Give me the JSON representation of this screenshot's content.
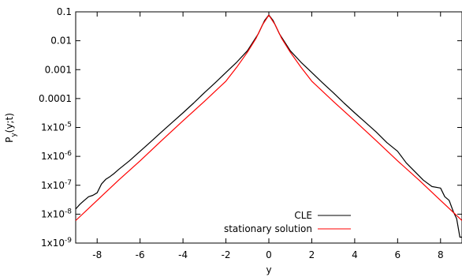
{
  "chart_data": {
    "type": "line",
    "title": "",
    "xlabel": "y",
    "ylabel": "P_y(y;t)",
    "ylabel_parts": {
      "base": "P",
      "sub": "y",
      "rest": "(y;t)"
    },
    "xlim": [
      -9,
      9
    ],
    "ylim": [
      1e-09,
      0.1
    ],
    "yscale": "log",
    "grid": false,
    "legend_position": "bottom-right",
    "x_ticks": [
      {
        "value": -8,
        "label": "-8"
      },
      {
        "value": -6,
        "label": "-6"
      },
      {
        "value": -4,
        "label": "-4"
      },
      {
        "value": -2,
        "label": "-2"
      },
      {
        "value": 0,
        "label": "0"
      },
      {
        "value": 2,
        "label": "2"
      },
      {
        "value": 4,
        "label": "4"
      },
      {
        "value": 6,
        "label": "6"
      },
      {
        "value": 8,
        "label": "8"
      }
    ],
    "y_ticks": [
      {
        "value": 0.1,
        "label": "0.1"
      },
      {
        "value": 0.01,
        "label": "0.01"
      },
      {
        "value": 0.001,
        "label": "0.001"
      },
      {
        "value": 0.0001,
        "label": "0.0001"
      },
      {
        "value": 1e-05,
        "base": "1x10",
        "exp": "-5"
      },
      {
        "value": 1e-06,
        "base": "1x10",
        "exp": "-6"
      },
      {
        "value": 1e-07,
        "base": "1x10",
        "exp": "-7"
      },
      {
        "value": 1e-08,
        "base": "1x10",
        "exp": "-8"
      },
      {
        "value": 1e-09,
        "base": "1x10",
        "exp": "-9"
      }
    ],
    "series": [
      {
        "name": "CLE",
        "color": "#000000",
        "x": [
          -9.0,
          -8.8,
          -8.6,
          -8.4,
          -8.2,
          -8.0,
          -7.8,
          -7.6,
          -7.4,
          -7.2,
          -7.0,
          -6.5,
          -6.0,
          -5.5,
          -5.0,
          -4.5,
          -4.0,
          -3.5,
          -3.0,
          -2.5,
          -2.0,
          -1.5,
          -1.0,
          -0.5,
          -0.2,
          0.0,
          0.2,
          0.5,
          1.0,
          1.5,
          2.0,
          2.5,
          3.0,
          3.5,
          4.0,
          4.5,
          5.0,
          5.5,
          6.0,
          6.4,
          6.8,
          7.2,
          7.6,
          8.0,
          8.2,
          8.4,
          8.6,
          8.75,
          8.9,
          9.0
        ],
        "y": [
          1.5e-08,
          2.2e-08,
          3e-08,
          4e-08,
          4.5e-08,
          5.5e-08,
          1.1e-07,
          1.6e-07,
          2e-07,
          2.6e-07,
          3.5e-07,
          7e-07,
          1.5e-06,
          3.2e-06,
          7e-06,
          1.5e-05,
          3.2e-05,
          7e-05,
          0.00016,
          0.00035,
          0.0008,
          0.0018,
          0.0045,
          0.017,
          0.05,
          0.078,
          0.05,
          0.017,
          0.0045,
          0.0018,
          0.0008,
          0.00035,
          0.00016,
          7e-05,
          3.2e-05,
          1.5e-05,
          7e-06,
          3e-06,
          1.5e-06,
          6e-07,
          3e-07,
          1.5e-07,
          9e-08,
          8e-08,
          4e-08,
          3e-08,
          1.2e-08,
          7e-09,
          1.6e-09,
          1.6e-09
        ]
      },
      {
        "name": "stationary solution",
        "color": "#ff0000",
        "x": [
          -9.0,
          -8.0,
          -7.0,
          -6.0,
          -5.0,
          -4.0,
          -3.0,
          -2.0,
          -1.5,
          -1.0,
          -0.6,
          -0.3,
          0.0,
          0.3,
          0.6,
          1.0,
          1.5,
          2.0,
          3.0,
          4.0,
          5.0,
          6.0,
          7.0,
          8.0,
          9.0
        ],
        "y": [
          6e-09,
          3e-08,
          1.5e-07,
          7e-07,
          3.5e-06,
          1.7e-05,
          8e-05,
          0.0004,
          0.0012,
          0.004,
          0.012,
          0.035,
          0.077,
          0.035,
          0.012,
          0.004,
          0.0012,
          0.0004,
          8e-05,
          1.7e-05,
          3.5e-06,
          7e-07,
          1.5e-07,
          3e-08,
          6e-09
        ]
      }
    ]
  }
}
